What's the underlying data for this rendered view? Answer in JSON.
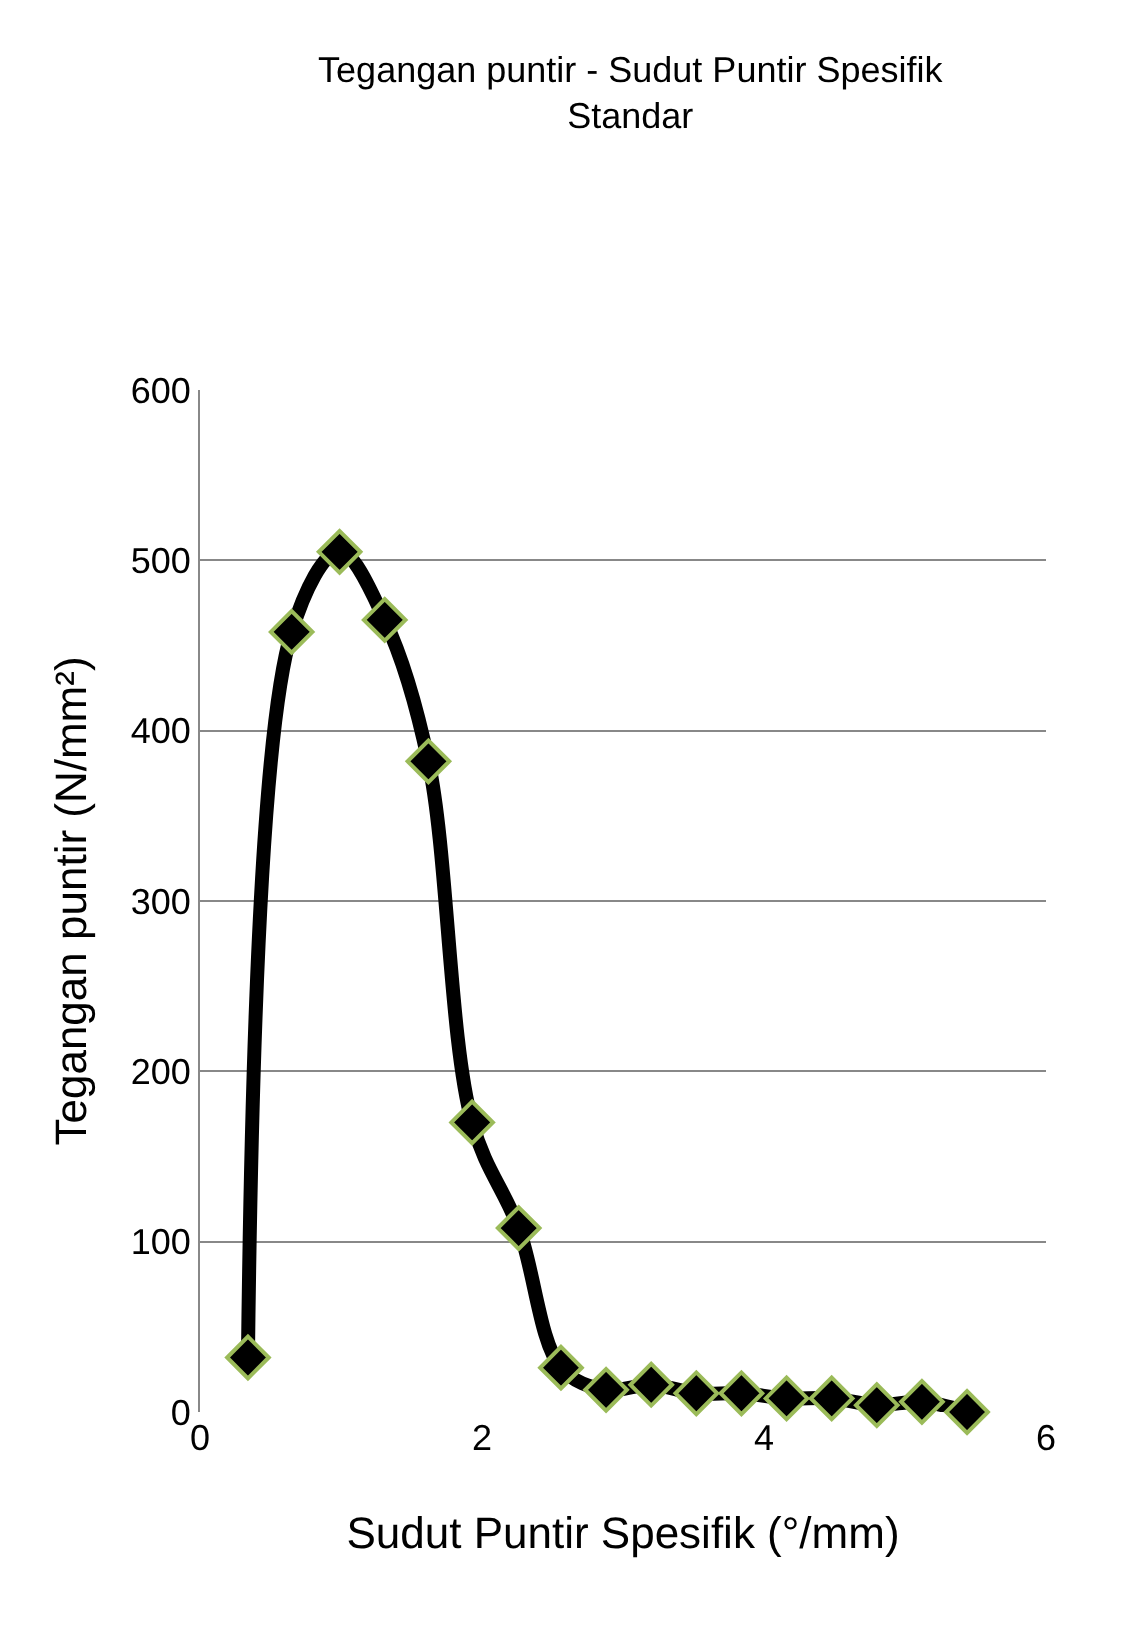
{
  "chart_data": {
    "type": "line",
    "title": "Tegangan puntir - Sudut Puntir Spesifik Standar",
    "xlabel": "Sudut Puntir Spesifik (°/mm)",
    "ylabel": "Tegangan puntir (N/mm²)",
    "x": [
      0.34,
      0.65,
      0.99,
      1.31,
      1.62,
      1.93,
      2.26,
      2.56,
      2.88,
      3.2,
      3.52,
      3.84,
      4.16,
      4.48,
      4.8,
      5.12,
      5.44
    ],
    "series": [
      {
        "color": "#000000",
        "values": [
          32,
          458,
          505,
          465,
          382,
          170,
          108,
          26,
          13,
          16,
          11,
          11,
          8,
          8,
          4,
          6,
          0
        ]
      }
    ],
    "marker": "diamond",
    "line_style": "solid",
    "xlim": [
      0,
      6
    ],
    "xticks": [
      0,
      2,
      4,
      6
    ],
    "ylim": [
      0,
      600
    ],
    "yticks": [
      0,
      100,
      200,
      300,
      400,
      500,
      600
    ],
    "grid": "y",
    "legend": false
  }
}
